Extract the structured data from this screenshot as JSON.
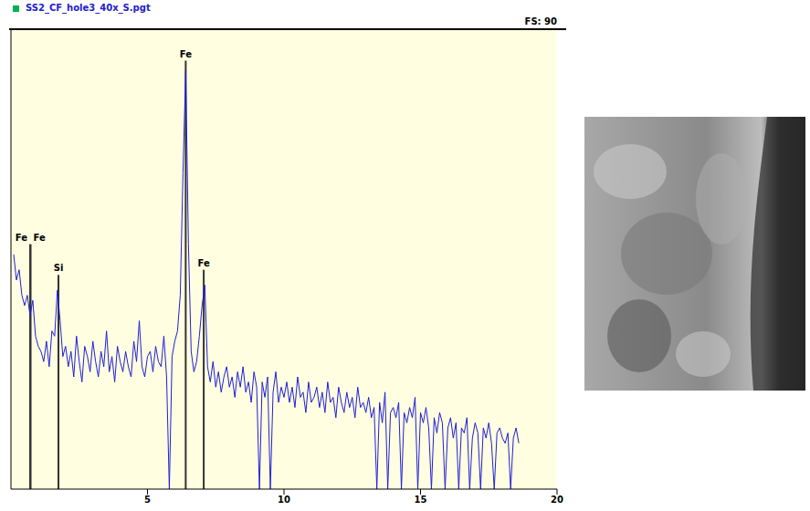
{
  "chart_data": {
    "type": "line",
    "title": "SS2_CF_hole3_40x_S.pgt",
    "subtitle": "FS: 90",
    "color": "#1f1fd8",
    "xlim": [
      0,
      20
    ],
    "xticks": [
      5,
      10,
      15,
      20
    ],
    "ylim": [
      0,
      90
    ],
    "tick_labels": "x",
    "grid": false,
    "x": [
      0.1,
      0.2,
      0.3,
      0.4,
      0.5,
      0.6,
      0.7,
      0.8,
      0.9,
      1.0,
      1.1,
      1.2,
      1.3,
      1.4,
      1.5,
      1.6,
      1.7,
      1.8,
      1.9,
      2.0,
      2.1,
      2.2,
      2.3,
      2.4,
      2.5,
      2.6,
      2.7,
      2.8,
      2.9,
      3.0,
      3.1,
      3.2,
      3.3,
      3.4,
      3.5,
      3.6,
      3.7,
      3.8,
      3.9,
      4.0,
      4.1,
      4.2,
      4.3,
      4.4,
      4.5,
      4.6,
      4.7,
      4.8,
      4.9,
      5.0,
      5.1,
      5.2,
      5.3,
      5.4,
      5.5,
      5.6,
      5.7,
      5.8,
      5.9,
      6.0,
      6.1,
      6.2,
      6.3,
      6.4,
      6.5,
      6.6,
      6.7,
      6.8,
      6.9,
      7.0,
      7.1,
      7.2,
      7.3,
      7.4,
      7.5,
      7.6,
      7.7,
      7.8,
      7.9,
      8.0,
      8.1,
      8.2,
      8.3,
      8.4,
      8.5,
      8.6,
      8.7,
      8.8,
      8.9,
      9.0,
      9.1,
      9.2,
      9.3,
      9.4,
      9.5,
      9.6,
      9.7,
      9.8,
      9.9,
      10.0,
      10.1,
      10.2,
      10.3,
      10.4,
      10.5,
      10.6,
      10.7,
      10.8,
      10.9,
      11.0,
      11.1,
      11.2,
      11.3,
      11.4,
      11.5,
      11.6,
      11.7,
      11.8,
      11.9,
      12.0,
      12.1,
      12.2,
      12.3,
      12.4,
      12.5,
      12.6,
      12.7,
      12.8,
      12.9,
      13.0,
      13.1,
      13.2,
      13.3,
      13.4,
      13.5,
      13.6,
      13.7,
      13.8,
      13.9,
      14.0,
      14.1,
      14.2,
      14.3,
      14.4,
      14.5,
      14.6,
      14.7,
      14.8,
      14.9,
      15.0,
      15.1,
      15.2,
      15.3,
      15.4,
      15.5,
      15.6,
      15.7,
      15.8,
      15.9,
      16.0,
      16.1,
      16.2,
      16.3,
      16.4,
      16.5,
      16.6,
      16.7,
      16.8,
      16.9,
      17.0,
      17.1,
      17.2,
      17.3,
      17.4,
      17.5,
      17.6,
      17.7,
      17.8,
      17.9,
      18.0,
      18.1,
      18.2,
      18.3,
      18.4,
      18.5,
      18.6
    ],
    "values": [
      46,
      41,
      43,
      38,
      36,
      38,
      34,
      37,
      30,
      28,
      27,
      25,
      29,
      24,
      31,
      30,
      39,
      33,
      26,
      28,
      24,
      27,
      22,
      30,
      25,
      21,
      28,
      26,
      23,
      29,
      25,
      22,
      27,
      24,
      31,
      23,
      26,
      21,
      28,
      25,
      23,
      27,
      24,
      22,
      29,
      25,
      33,
      24,
      22,
      26,
      27,
      23,
      28,
      25,
      24,
      30,
      22,
      0,
      26,
      29,
      31,
      38,
      62,
      82,
      48,
      27,
      23,
      25,
      30,
      36,
      40,
      24,
      21,
      25,
      20,
      23,
      19,
      22,
      24,
      20,
      22,
      18,
      23,
      20,
      24,
      19,
      21,
      17,
      23,
      20,
      0,
      21,
      18,
      22,
      0,
      19,
      23,
      17,
      20,
      18,
      21,
      17,
      20,
      16,
      22,
      18,
      19,
      15,
      21,
      17,
      18,
      20,
      16,
      19,
      15,
      21,
      17,
      18,
      14,
      20,
      17,
      15,
      19,
      16,
      18,
      14,
      20,
      16,
      17,
      15,
      18,
      14,
      16,
      0,
      17,
      13,
      19,
      0,
      15,
      16,
      14,
      17,
      0,
      15,
      13,
      16,
      14,
      18,
      0,
      15,
      13,
      16,
      12,
      0,
      14,
      11,
      15,
      13,
      0,
      12,
      14,
      10,
      13,
      0,
      12,
      11,
      14,
      0,
      10,
      13,
      11,
      0,
      12,
      10,
      13,
      9,
      0,
      11,
      12,
      10,
      9,
      11,
      0,
      10,
      12,
      9
    ],
    "annotations": [
      {
        "text": "Fe",
        "x": 0.705,
        "y": 48
      },
      {
        "text": "Fe",
        "x": 0.718,
        "y": 48
      },
      {
        "text": "Si",
        "x": 1.74,
        "y": 42
      },
      {
        "text": "Fe",
        "x": 6.4,
        "y": 84
      },
      {
        "text": "Fe",
        "x": 7.06,
        "y": 43
      }
    ]
  }
}
